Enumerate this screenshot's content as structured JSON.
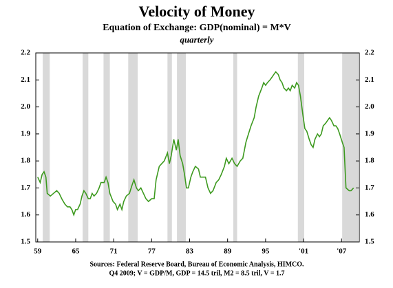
{
  "chart_data": {
    "type": "line",
    "title": "Velocity of Money",
    "subtitle": "Equation of Exchange: GDP(nominal) = M*V",
    "frequency": "quarterly",
    "source": "Sources: Federal Reserve Board, Bureau of Economic Analysis, HIMCO.",
    "note": "Q4 2009; V = GDP/M, GDP = 14.5 tril, M2 = 8.5 tril, V = 1.7",
    "xlim": [
      1958.7,
      2009.8
    ],
    "ylim": [
      1.5,
      2.2
    ],
    "xticks": [
      {
        "value": 1959,
        "label": "59"
      },
      {
        "value": 1965,
        "label": "65"
      },
      {
        "value": 1971,
        "label": "71"
      },
      {
        "value": 1977,
        "label": "77"
      },
      {
        "value": 1983,
        "label": "83"
      },
      {
        "value": 1989,
        "label": "89"
      },
      {
        "value": 1995,
        "label": "95"
      },
      {
        "value": 2001,
        "label": "'01"
      },
      {
        "value": 2007,
        "label": "'07"
      }
    ],
    "yticks": [
      1.5,
      1.6,
      1.7,
      1.8,
      1.9,
      {
        "value": 2,
        "label": "2.0"
      },
      2.1,
      2.2
    ],
    "recessions": [
      [
        1959.8,
        1960.9
      ],
      [
        1966.1,
        1967.0
      ],
      [
        1969.4,
        1970.4
      ],
      [
        1973.3,
        1974.8
      ],
      [
        1979.5,
        1980.2
      ],
      [
        1981.0,
        1982.4
      ],
      [
        1989.9,
        1990.5
      ],
      [
        2000.1,
        2001.1
      ],
      [
        2007.1,
        2009.6
      ]
    ],
    "recession_color": "#d9d9d9",
    "series": [
      {
        "color": "#3d9a1f",
        "x": [
          1959.0,
          1959.4,
          1959.7,
          1960.0,
          1960.3,
          1960.5,
          1961.0,
          1961.5,
          1962.0,
          1962.4,
          1962.8,
          1963.3,
          1963.7,
          1964.1,
          1964.4,
          1964.7,
          1965.0,
          1965.3,
          1965.7,
          1966.0,
          1966.3,
          1966.6,
          1967.0,
          1967.3,
          1967.6,
          1967.9,
          1968.3,
          1968.7,
          1969.0,
          1969.5,
          1969.8,
          1970.1,
          1970.4,
          1970.9,
          1971.3,
          1971.6,
          1972.0,
          1972.3,
          1972.6,
          1973.0,
          1973.5,
          1973.9,
          1974.2,
          1974.6,
          1974.9,
          1975.3,
          1975.7,
          1976.1,
          1976.5,
          1977.0,
          1977.4,
          1977.7,
          1978.2,
          1978.6,
          1979.0,
          1979.5,
          1979.8,
          1980.1,
          1980.5,
          1980.9,
          1981.2,
          1981.5,
          1981.9,
          1982.2,
          1982.5,
          1982.8,
          1983.2,
          1983.5,
          1983.9,
          1984.4,
          1984.7,
          1985.1,
          1985.5,
          1985.9,
          1986.3,
          1986.7,
          1987.2,
          1987.6,
          1988.0,
          1988.5,
          1988.8,
          1989.2,
          1989.7,
          1990.1,
          1990.5,
          1991.0,
          1991.4,
          1991.9,
          1992.3,
          1992.7,
          1993.2,
          1993.5,
          1993.9,
          1994.4,
          1994.7,
          1995.0,
          1995.3,
          1995.7,
          1996.0,
          1996.3,
          1996.6,
          1997.0,
          1997.3,
          1997.6,
          1997.9,
          1998.3,
          1998.6,
          1998.9,
          1999.2,
          1999.6,
          1999.9,
          2000.2,
          2000.5,
          2000.9,
          2001.2,
          2001.5,
          2001.9,
          2002.2,
          2002.5,
          2002.8,
          2003.2,
          2003.5,
          2003.8,
          2004.1,
          2004.5,
          2004.8,
          2005.1,
          2005.4,
          2005.8,
          2006.1,
          2006.4,
          2006.7,
          2007.1,
          2007.4,
          2007.7,
          2008.2,
          2008.5,
          2008.9
        ],
        "values": [
          1.74,
          1.72,
          1.75,
          1.76,
          1.74,
          1.68,
          1.67,
          1.68,
          1.69,
          1.68,
          1.66,
          1.64,
          1.63,
          1.63,
          1.62,
          1.6,
          1.62,
          1.62,
          1.64,
          1.67,
          1.69,
          1.68,
          1.66,
          1.66,
          1.68,
          1.67,
          1.68,
          1.7,
          1.72,
          1.72,
          1.74,
          1.72,
          1.68,
          1.65,
          1.64,
          1.62,
          1.64,
          1.62,
          1.65,
          1.67,
          1.68,
          1.71,
          1.73,
          1.7,
          1.69,
          1.7,
          1.68,
          1.66,
          1.65,
          1.66,
          1.66,
          1.73,
          1.78,
          1.79,
          1.8,
          1.83,
          1.79,
          1.82,
          1.88,
          1.84,
          1.88,
          1.82,
          1.79,
          1.75,
          1.7,
          1.7,
          1.74,
          1.76,
          1.78,
          1.77,
          1.74,
          1.74,
          1.74,
          1.7,
          1.68,
          1.69,
          1.72,
          1.73,
          1.75,
          1.78,
          1.81,
          1.79,
          1.81,
          1.79,
          1.78,
          1.8,
          1.81,
          1.87,
          1.9,
          1.93,
          1.96,
          2.0,
          2.04,
          2.07,
          2.09,
          2.08,
          2.09,
          2.1,
          2.11,
          2.12,
          2.13,
          2.12,
          2.1,
          2.09,
          2.07,
          2.06,
          2.07,
          2.06,
          2.08,
          2.07,
          2.09,
          2.08,
          2.04,
          1.97,
          1.92,
          1.91,
          1.88,
          1.86,
          1.85,
          1.88,
          1.9,
          1.89,
          1.9,
          1.93,
          1.94,
          1.95,
          1.96,
          1.95,
          1.93,
          1.93,
          1.92,
          1.9,
          1.87,
          1.85,
          1.7,
          1.69,
          1.69,
          1.7
        ]
      }
    ]
  }
}
